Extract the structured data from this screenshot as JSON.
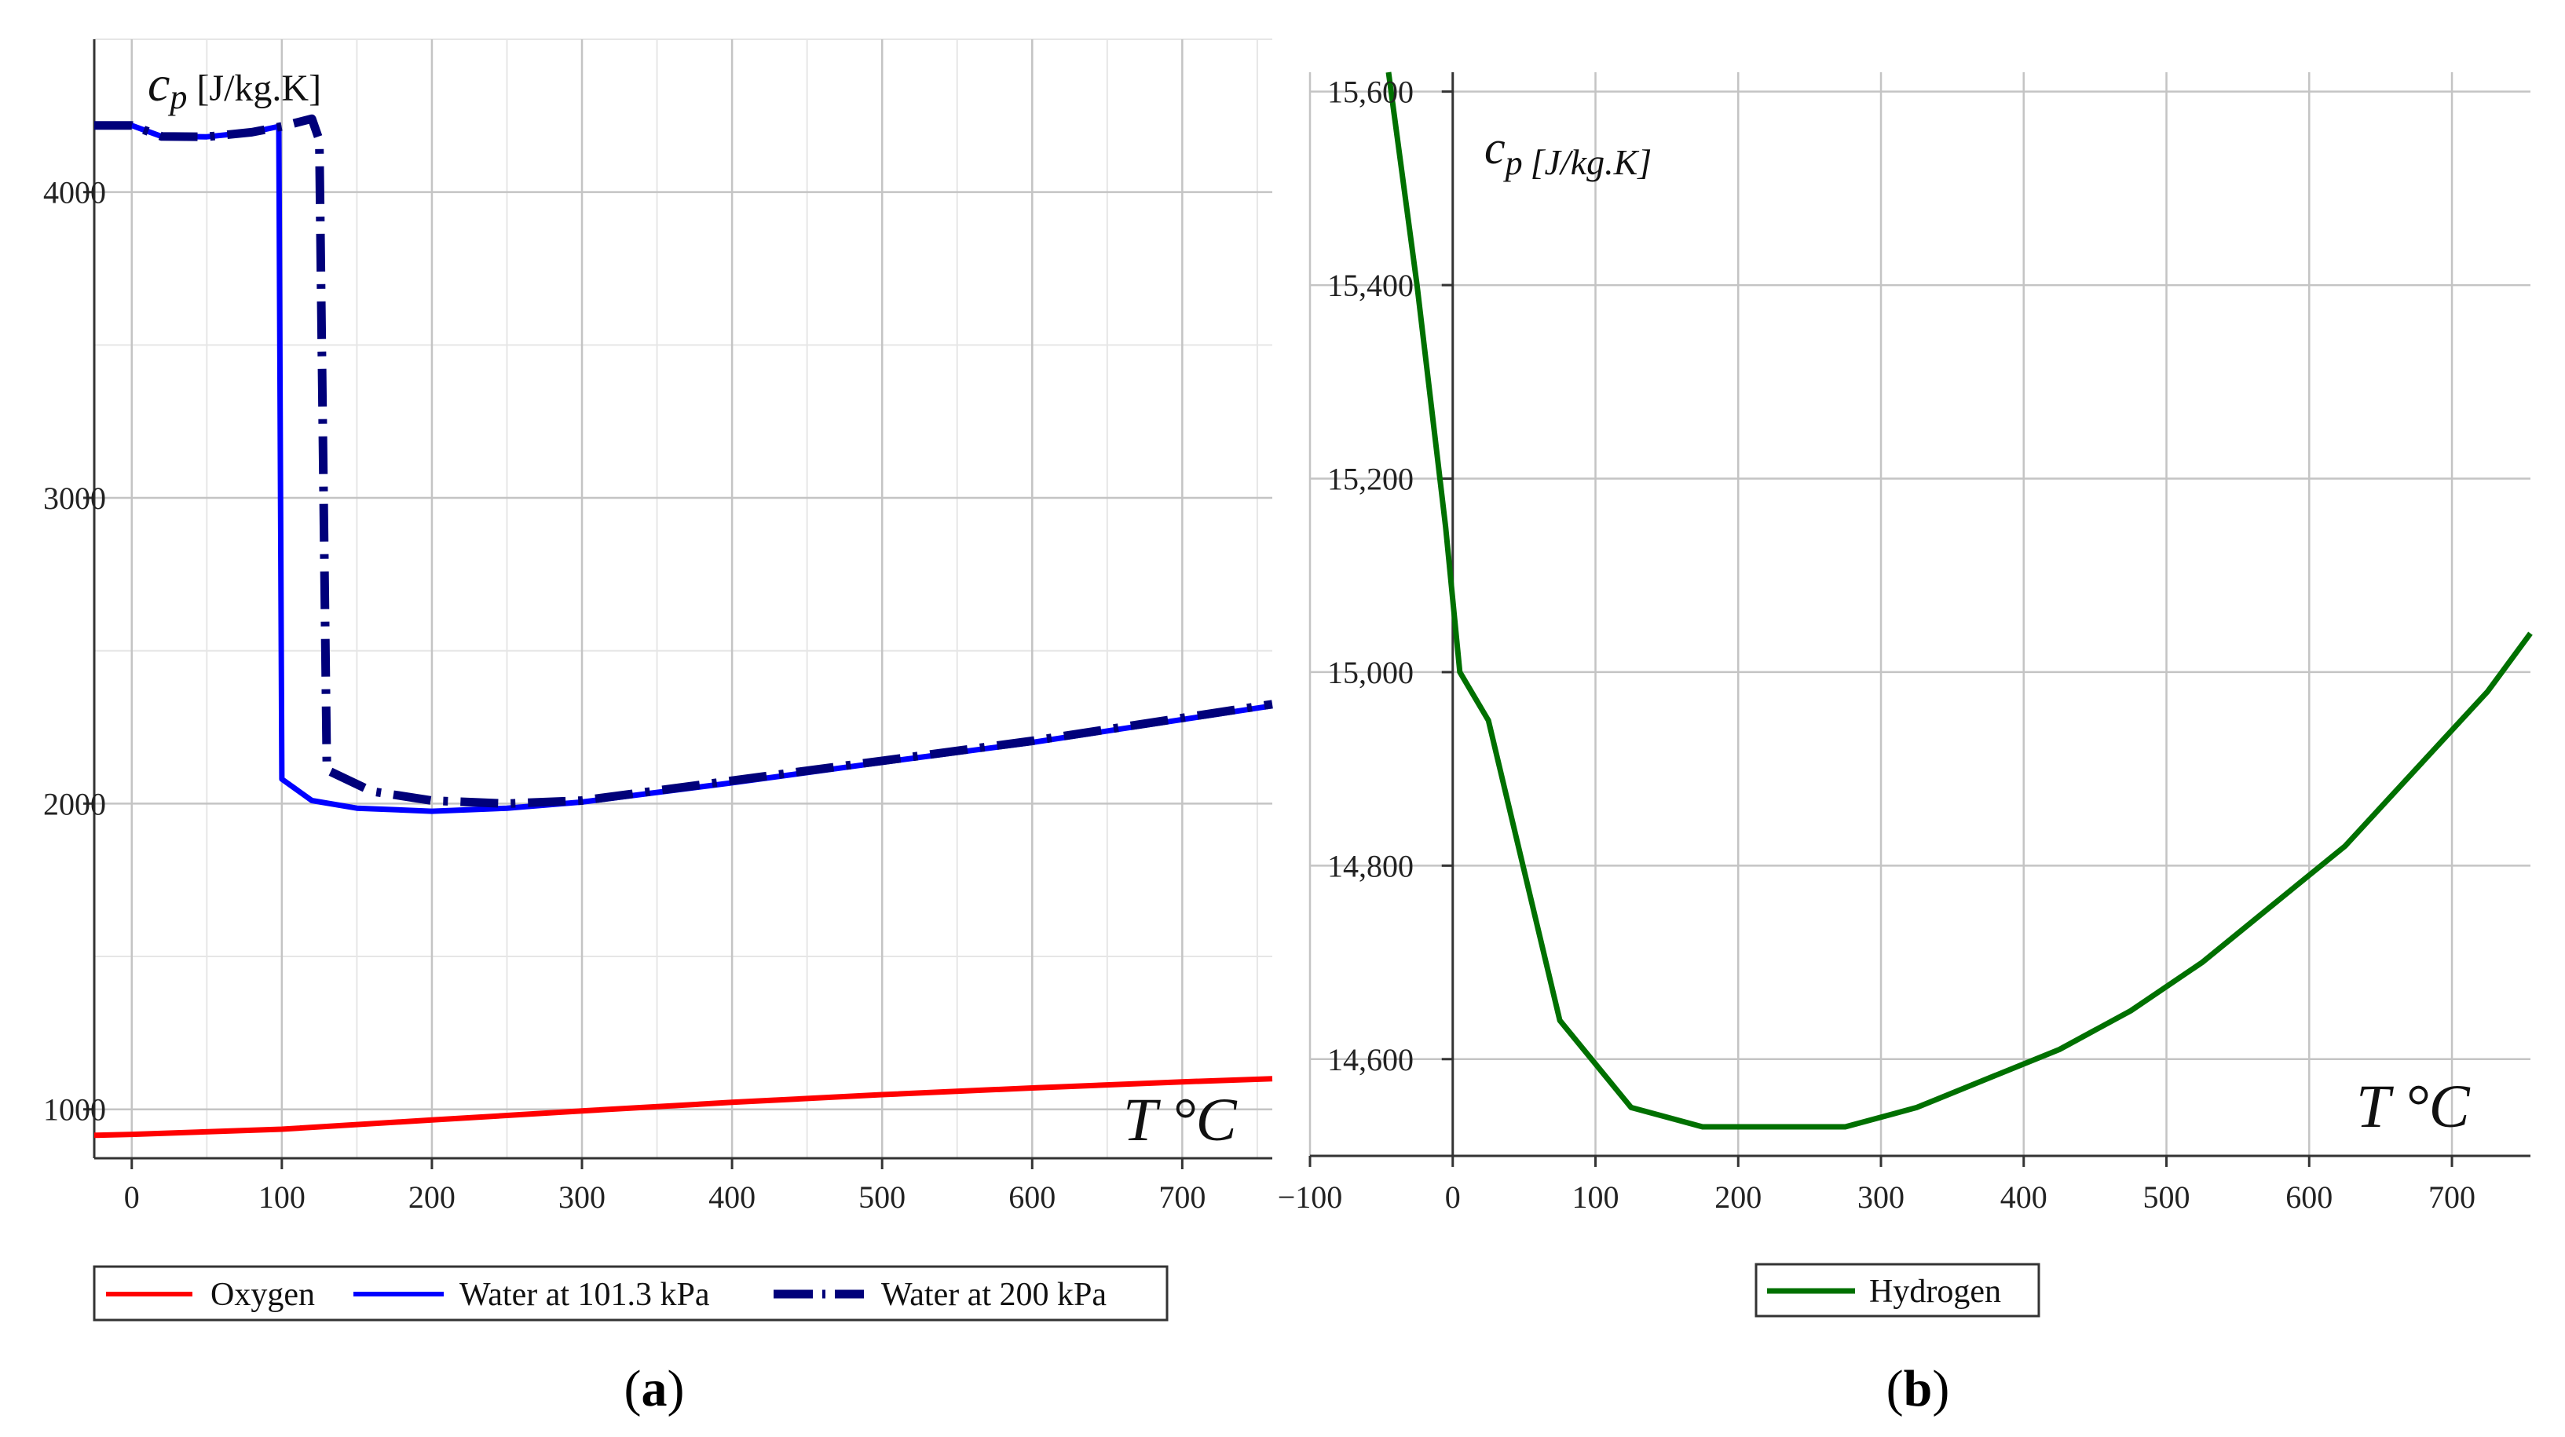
{
  "chart_data": [
    {
      "type": "line",
      "panel_label": "a",
      "ylabel_main": "c",
      "ylabel_sub": "p",
      "ylabel_unit": "[J/kg.K]",
      "xlabel": "T °C",
      "xlim": [
        -25,
        760
      ],
      "ylim": [
        840,
        4500
      ],
      "xticks": [
        0,
        100,
        200,
        300,
        400,
        500,
        600,
        700
      ],
      "yticks": [
        1000,
        2000,
        3000,
        4000
      ],
      "xtick_labels": [
        "0",
        "100",
        "200",
        "300",
        "400",
        "500",
        "600",
        "700"
      ],
      "ytick_labels": [
        "1000",
        "2000",
        "3000",
        "4000"
      ],
      "grid": true,
      "legend_position": "bottom",
      "series": [
        {
          "name": "Oxygen",
          "color": "#ff0000",
          "style": "solid",
          "points": [
            [
              -25,
              915
            ],
            [
              0,
              918
            ],
            [
              100,
              935
            ],
            [
              200,
              965
            ],
            [
              300,
              995
            ],
            [
              400,
              1023
            ],
            [
              500,
              1048
            ],
            [
              600,
              1070
            ],
            [
              700,
              1090
            ],
            [
              760,
              1100
            ]
          ]
        },
        {
          "name": "Water at 101.3 kPa",
          "color": "#0000ff",
          "style": "solid",
          "points": [
            [
              -25,
              4218
            ],
            [
              0,
              4218
            ],
            [
              20,
              4182
            ],
            [
              50,
              4181
            ],
            [
              80,
              4196
            ],
            [
              98,
              4215
            ],
            [
              100,
              2080
            ],
            [
              120,
              2010
            ],
            [
              150,
              1985
            ],
            [
              200,
              1975
            ],
            [
              250,
              1985
            ],
            [
              300,
              2005
            ],
            [
              400,
              2068
            ],
            [
              500,
              2135
            ],
            [
              600,
              2200
            ],
            [
              700,
              2275
            ],
            [
              760,
              2320
            ]
          ]
        },
        {
          "name": "Water at 200 kPa",
          "color": "#00007a",
          "style": "dashdot",
          "points": [
            [
              -25,
              4218
            ],
            [
              0,
              4218
            ],
            [
              20,
              4182
            ],
            [
              50,
              4181
            ],
            [
              80,
              4196
            ],
            [
              100,
              4215
            ],
            [
              120,
              4240
            ],
            [
              125,
              4170
            ],
            [
              130,
              2110
            ],
            [
              160,
              2040
            ],
            [
              200,
              2010
            ],
            [
              250,
              2000
            ],
            [
              300,
              2010
            ],
            [
              400,
              2075
            ],
            [
              500,
              2140
            ],
            [
              600,
              2205
            ],
            [
              700,
              2280
            ],
            [
              760,
              2325
            ]
          ]
        }
      ]
    },
    {
      "type": "line",
      "panel_label": "b",
      "ylabel_main": "c",
      "ylabel_sub": "p",
      "ylabel_unit": "[J/kg.K]",
      "xlabel": "T °C",
      "xlim": [
        -100,
        755
      ],
      "ylim": [
        14500,
        15620
      ],
      "xticks": [
        -100,
        0,
        100,
        200,
        300,
        400,
        500,
        600,
        700
      ],
      "yticks": [
        14600,
        14800,
        15000,
        15200,
        15400,
        15600
      ],
      "xtick_labels": [
        "−100",
        "0",
        "100",
        "200",
        "300",
        "400",
        "500",
        "600",
        "700"
      ],
      "ytick_labels": [
        "14,600",
        "14,800",
        "15,000",
        "15,200",
        "15,400",
        "15,600"
      ],
      "grid": true,
      "legend_position": "bottom",
      "series": [
        {
          "name": "Hydrogen",
          "color": "#007000",
          "style": "solid",
          "points": [
            [
              -45,
              15620
            ],
            [
              -25,
              15400
            ],
            [
              -5,
              15150
            ],
            [
              5,
              15000
            ],
            [
              25,
              14950
            ],
            [
              75,
              14640
            ],
            [
              125,
              14550
            ],
            [
              175,
              14530
            ],
            [
              225,
              14530
            ],
            [
              275,
              14530
            ],
            [
              325,
              14550
            ],
            [
              375,
              14580
            ],
            [
              425,
              14610
            ],
            [
              475,
              14650
            ],
            [
              525,
              14700
            ],
            [
              575,
              14760
            ],
            [
              625,
              14820
            ],
            [
              675,
              14900
            ],
            [
              725,
              14980
            ],
            [
              755,
              15040
            ]
          ]
        }
      ]
    }
  ]
}
